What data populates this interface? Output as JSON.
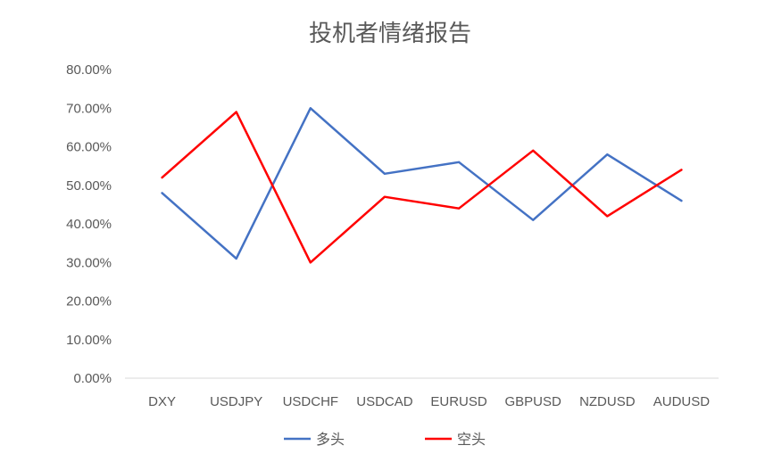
{
  "chart_data": {
    "type": "line",
    "title": "投机者情绪报告",
    "xlabel": "",
    "ylabel": "",
    "categories": [
      "DXY",
      "USDJPY",
      "USDCHF",
      "USDCAD",
      "EURUSD",
      "GBPUSD",
      "NZDUSD",
      "AUDUSD"
    ],
    "ylim": [
      0,
      0.8
    ],
    "y_ticks": [
      0,
      0.1,
      0.2,
      0.3,
      0.4,
      0.5,
      0.6,
      0.7,
      0.8
    ],
    "y_tick_labels": [
      "0.00%",
      "10.00%",
      "20.00%",
      "30.00%",
      "40.00%",
      "50.00%",
      "60.00%",
      "70.00%",
      "80.00%"
    ],
    "grid": false,
    "legend_position": "bottom",
    "series": [
      {
        "name": "多头",
        "color": "#4472C4",
        "values": [
          0.48,
          0.31,
          0.7,
          0.53,
          0.56,
          0.41,
          0.58,
          0.46
        ]
      },
      {
        "name": "空头",
        "color": "#FF0000",
        "values": [
          0.52,
          0.69,
          0.3,
          0.47,
          0.44,
          0.59,
          0.42,
          0.54
        ]
      }
    ]
  }
}
